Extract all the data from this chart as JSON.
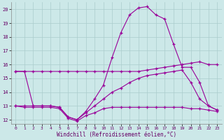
{
  "background_color": "#cce8e8",
  "grid_color": "#aacccc",
  "line_color": "#990099",
  "xlabel": "Windchill (Refroidissement éolien,°C)",
  "xlim_min": -0.5,
  "xlim_max": 23.5,
  "ylim_min": 11.7,
  "ylim_max": 20.5,
  "yticks": [
    12,
    13,
    14,
    15,
    16,
    17,
    18,
    19,
    20
  ],
  "xticks": [
    0,
    1,
    2,
    3,
    4,
    5,
    6,
    7,
    8,
    9,
    10,
    11,
    12,
    13,
    14,
    15,
    16,
    17,
    18,
    19,
    20,
    21,
    22,
    23
  ],
  "series": [
    {
      "x": [
        0,
        1,
        2,
        3,
        4,
        5,
        6,
        7,
        8,
        9,
        10,
        11,
        12,
        13,
        14,
        15,
        16,
        17,
        18,
        19,
        20,
        21,
        22,
        23
      ],
      "y": [
        15.5,
        15.5,
        15.5,
        15.5,
        15.5,
        15.5,
        15.5,
        15.5,
        15.5,
        15.5,
        15.5,
        15.5,
        15.5,
        15.5,
        15.5,
        15.6,
        15.7,
        15.8,
        15.9,
        16.0,
        16.1,
        16.2,
        16.0,
        16.0
      ]
    },
    {
      "x": [
        0,
        1,
        2,
        3,
        4,
        5,
        6,
        7,
        8,
        9,
        10,
        11,
        12,
        13,
        14,
        15,
        16,
        17,
        18,
        19,
        20,
        21,
        22,
        23
      ],
      "y": [
        13.0,
        12.9,
        12.9,
        12.9,
        12.9,
        12.8,
        12.1,
        11.9,
        12.3,
        12.5,
        12.8,
        12.9,
        12.9,
        12.9,
        12.9,
        12.9,
        12.9,
        12.9,
        12.9,
        12.9,
        12.8,
        12.8,
        12.7,
        12.6
      ]
    },
    {
      "x": [
        0,
        1,
        2,
        3,
        4,
        5,
        6,
        7,
        8,
        9,
        10,
        11,
        12,
        13,
        14,
        15,
        16,
        17,
        18,
        19,
        20,
        21,
        22,
        23
      ],
      "y": [
        13.0,
        13.0,
        13.0,
        13.0,
        13.0,
        12.9,
        12.2,
        12.0,
        12.5,
        13.0,
        13.5,
        14.0,
        14.3,
        14.7,
        15.0,
        15.2,
        15.3,
        15.4,
        15.5,
        15.6,
        14.7,
        13.5,
        13.0,
        12.7
      ]
    },
    {
      "x": [
        0,
        1,
        2,
        3,
        4,
        5,
        6,
        7,
        8,
        9,
        10,
        11,
        12,
        13,
        14,
        15,
        16,
        17,
        18,
        19,
        20,
        21,
        22,
        23
      ],
      "y": [
        15.5,
        15.5,
        13.0,
        13.0,
        13.0,
        12.9,
        12.2,
        12.0,
        12.6,
        13.5,
        14.5,
        16.5,
        18.3,
        19.6,
        20.1,
        20.2,
        19.6,
        19.3,
        17.5,
        15.8,
        15.8,
        14.7,
        13.0,
        12.7
      ]
    }
  ]
}
